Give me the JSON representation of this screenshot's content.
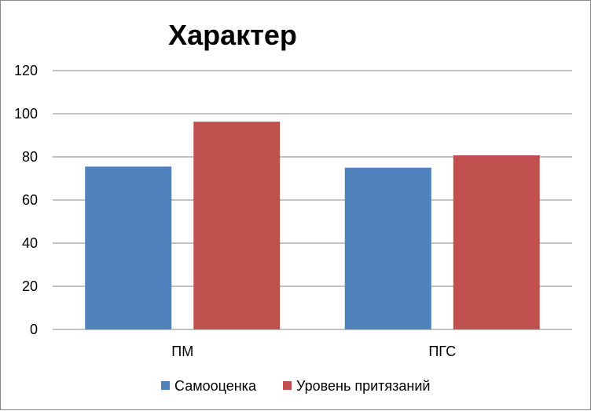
{
  "chart_data": {
    "type": "bar",
    "title": "Характер",
    "categories": [
      "ПМ",
      "ПГС"
    ],
    "series": [
      {
        "name": "Самооценка",
        "values": [
          75.5,
          75.0
        ],
        "color": "#4F81BD"
      },
      {
        "name": "Уровень притязаний",
        "values": [
          96.3,
          80.7
        ],
        "color": "#C0504D"
      }
    ],
    "ylim": [
      0,
      120
    ],
    "yticks": [
      0,
      20,
      40,
      60,
      80,
      100,
      120
    ],
    "grid": true,
    "legend": "bottom"
  }
}
